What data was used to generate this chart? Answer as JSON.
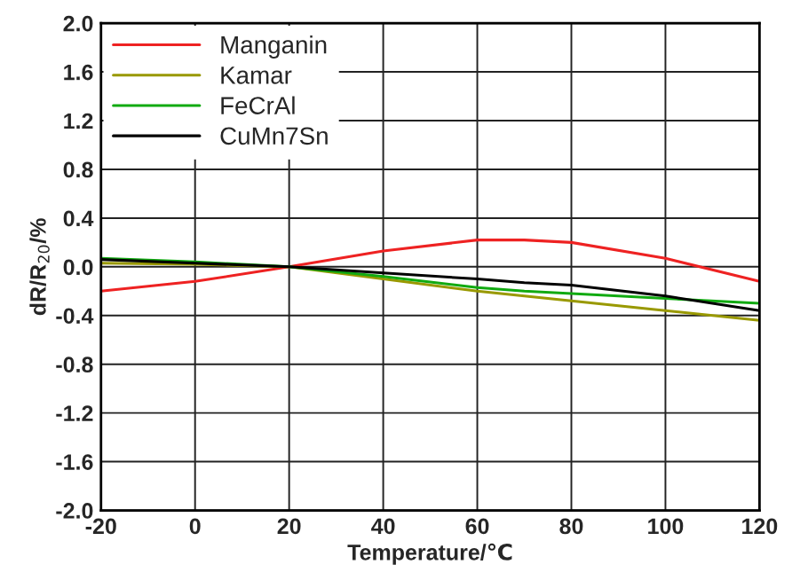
{
  "chart_data": {
    "type": "line",
    "xlabel": "Temperature/℃",
    "ylabel": "dR/R$_{20}$/%",
    "x": [
      -20,
      0,
      20,
      40,
      60,
      70,
      80,
      100,
      120
    ],
    "series": [
      {
        "name": "Manganin",
        "color": "#ee2222",
        "values": [
          -0.2,
          -0.12,
          0,
          0.13,
          0.22,
          0.22,
          0.2,
          0.07,
          -0.12
        ]
      },
      {
        "name": "Kamar",
        "color": "#999900",
        "values": [
          0.03,
          0.02,
          0,
          -0.1,
          -0.2,
          -0.24,
          -0.28,
          -0.36,
          -0.44
        ]
      },
      {
        "name": "FeCrAl",
        "color": "#11aa11",
        "values": [
          0.07,
          0.04,
          0,
          -0.08,
          -0.17,
          -0.2,
          -0.22,
          -0.26,
          -0.3
        ]
      },
      {
        "name": "CuMn7Sn",
        "color": "#000000",
        "values": [
          0.06,
          0.03,
          0,
          -0.05,
          -0.1,
          -0.13,
          -0.15,
          -0.24,
          -0.36
        ]
      }
    ],
    "xlim": [
      -20,
      120
    ],
    "xticks": [
      -20,
      0,
      20,
      40,
      60,
      80,
      100,
      120
    ],
    "ylim": [
      -2.0,
      2.0
    ],
    "yticks": [
      {
        "value": -2.0,
        "label": "-2.0"
      },
      {
        "value": -1.6,
        "label": "-1.6"
      },
      {
        "value": -1.2,
        "label": "-1.2"
      },
      {
        "value": -0.8,
        "label": "-0.8"
      },
      {
        "value": -0.4,
        "label": "-0.4"
      },
      {
        "value": 0.0,
        "label": "0.0"
      },
      {
        "value": 0.4,
        "label": "0.4"
      },
      {
        "value": 0.8,
        "label": "0.8"
      },
      {
        "value": 1.2,
        "label": "1.2"
      },
      {
        "value": 1.6,
        "label": "1.6"
      },
      {
        "value": 2.0,
        "label": "2.0"
      }
    ],
    "grid": true,
    "legend": "top left",
    "marker": "none",
    "line_style": "solid"
  }
}
